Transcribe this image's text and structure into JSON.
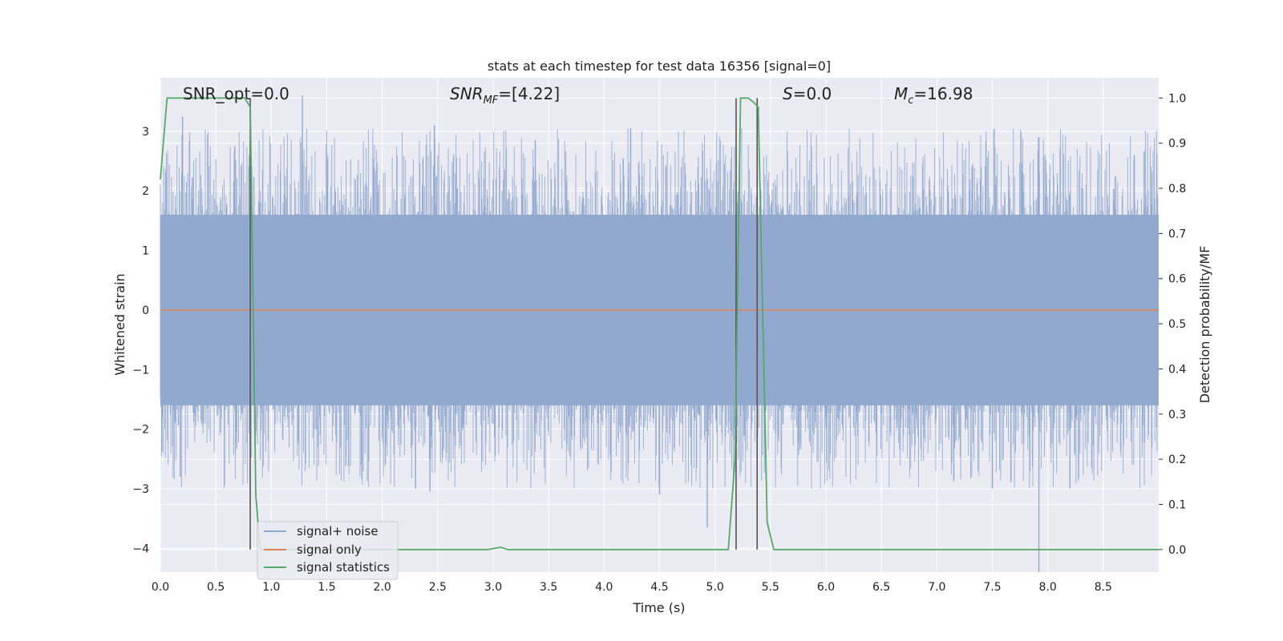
{
  "chart_data": {
    "type": "line",
    "title": "stats at each timestep for test data 16356 [signal=0]",
    "xlabel": "Time (s)",
    "ylabel": "Whitened strain",
    "ylabel_right": "Detection probability/MF",
    "xlim": [
      0,
      9.0
    ],
    "ylim": [
      -4.4,
      3.9
    ],
    "ylim_right": [
      -0.05,
      1.045
    ],
    "x_ticks": [
      "0.0",
      "0.5",
      "1.0",
      "1.5",
      "2.0",
      "2.5",
      "3.0",
      "3.5",
      "4.0",
      "4.5",
      "5.0",
      "5.5",
      "6.0",
      "6.5",
      "7.0",
      "7.5",
      "8.0",
      "8.5"
    ],
    "x_tick_values": [
      0,
      0.5,
      1,
      1.5,
      2,
      2.5,
      3,
      3.5,
      4,
      4.5,
      5,
      5.5,
      6,
      6.5,
      7,
      7.5,
      8,
      8.5
    ],
    "y_ticks": [
      "−4",
      "−3",
      "−2",
      "−1",
      "0",
      "1",
      "2",
      "3"
    ],
    "y_tick_values": [
      -4,
      -3,
      -2,
      -1,
      0,
      1,
      2,
      3
    ],
    "y_ticks_right": [
      "0.0",
      "0.1",
      "0.2",
      "0.3",
      "0.4",
      "0.5",
      "0.6",
      "0.7",
      "0.8",
      "0.9",
      "1.0"
    ],
    "y_tick_values_right": [
      0,
      0.1,
      0.2,
      0.3,
      0.4,
      0.5,
      0.6,
      0.7,
      0.8,
      0.9,
      1.0
    ],
    "grid": true,
    "annotations": {
      "snr_opt": "SNR_opt=0.0",
      "snr_mf_main": "SNR",
      "snr_mf_sub": "MF",
      "snr_mf_rest": "=[4.22]",
      "s_main": "S",
      "s_rest": "=0.0",
      "mc_main": "M",
      "mc_sub": "c",
      "mc_rest": "=16.98"
    },
    "legend": {
      "placement": "lower-left",
      "entries": [
        "signal+ noise",
        "signal only",
        "signal statistics"
      ]
    },
    "series": [
      {
        "name": "signal+ noise",
        "color": "#92a9cf",
        "axis": "left",
        "style": "dense-noise",
        "x_range": [
          0,
          9.0
        ],
        "band": [
          -1.6,
          1.6
        ],
        "spike_peaks": [
          {
            "x": 0.2,
            "y": 3.25
          },
          {
            "x": 0.67,
            "y": 2.75
          },
          {
            "x": 1.28,
            "y": 3.6
          },
          {
            "x": 2.47,
            "y": 3.1
          },
          {
            "x": 3.38,
            "y": 2.85
          },
          {
            "x": 4.24,
            "y": 3.05
          },
          {
            "x": 7.92,
            "y": 2.9
          },
          {
            "x": 8.78,
            "y": 2.6
          },
          {
            "x": 0.18,
            "y": -2.8
          },
          {
            "x": 2.3,
            "y": -3.0
          },
          {
            "x": 2.43,
            "y": -3.05
          },
          {
            "x": 4.5,
            "y": -3.1
          },
          {
            "x": 4.93,
            "y": -3.65
          },
          {
            "x": 7.5,
            "y": -3.0
          },
          {
            "x": 7.92,
            "y": -4.4
          },
          {
            "x": 8.2,
            "y": -3.0
          }
        ]
      },
      {
        "name": "signal only",
        "color": "#dd8452",
        "axis": "left",
        "x": [
          0,
          9.0
        ],
        "y": [
          0,
          0
        ]
      },
      {
        "name": "signal statistics",
        "color": "#55a868",
        "axis": "right",
        "x": [
          0,
          0.06,
          0.1,
          0.7,
          0.76,
          0.81,
          0.86,
          0.9,
          0.95,
          2.95,
          3.07,
          3.13,
          5.12,
          5.18,
          5.23,
          5.3,
          5.35,
          5.39,
          5.47,
          5.53,
          9.0
        ],
        "y": [
          0.82,
          1.0,
          1.0,
          1.0,
          1.0,
          0.98,
          0.12,
          0.0,
          0.0,
          0.0,
          0.005,
          0.0,
          0.0,
          0.2,
          1.0,
          1.0,
          0.99,
          0.98,
          0.06,
          0.0,
          0.0
        ]
      }
    ],
    "vertical_markers": [
      0.81,
      5.19,
      5.38
    ],
    "marker_color": "#555555"
  }
}
